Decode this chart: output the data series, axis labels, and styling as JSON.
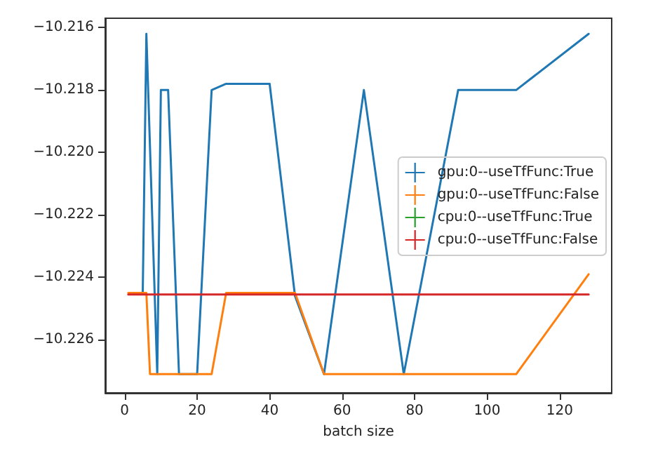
{
  "chart_data": {
    "type": "line",
    "xlabel": "batch size",
    "xlim": [
      -5.35,
      134.35
    ],
    "xticks": [
      0,
      20,
      40,
      60,
      80,
      100,
      120
    ],
    "ylim": [
      -10.2277,
      -10.2157
    ],
    "yticks": [
      -10.226,
      -10.224,
      -10.222,
      {
        "value": -10.22,
        "label": "−10.220"
      },
      -10.218,
      -10.216
    ],
    "series": [
      {
        "name": "gpu:0--useTfFunc:True",
        "color": "#1f77b4",
        "x": [
          5,
          6,
          9,
          10,
          12,
          15,
          20,
          24,
          28,
          34,
          40,
          47,
          55,
          66,
          77,
          92,
          108,
          128
        ],
        "values": [
          -10.2245,
          -10.2162,
          -10.2271,
          -10.218,
          -10.218,
          -10.2271,
          -10.2271,
          -10.218,
          -10.2178,
          -10.2178,
          -10.2178,
          -10.2246,
          -10.2271,
          -10.218,
          -10.2271,
          -10.218,
          -10.218,
          -10.2162
        ]
      },
      {
        "name": "gpu:0--useTfFunc:False",
        "color": "#ff7f0e",
        "x": [
          1,
          6,
          7,
          24,
          28,
          47,
          55,
          108,
          128
        ],
        "values": [
          -10.2245,
          -10.2245,
          -10.2271,
          -10.2271,
          -10.2245,
          -10.2245,
          -10.2271,
          -10.2271,
          -10.2239
        ]
      },
      {
        "name": "cpu:0--useTfFunc:True",
        "color": "#2ca02c",
        "values": [
          null,
          null
        ]
      },
      {
        "name": "cpu:0--useTfFunc:False",
        "color": "#d62728",
        "x": [
          1,
          128
        ],
        "values": [
          -10.22455,
          -10.22455
        ]
      }
    ],
    "legend": "center right",
    "marker": "none",
    "line_style": "solid",
    "grid": false
  }
}
